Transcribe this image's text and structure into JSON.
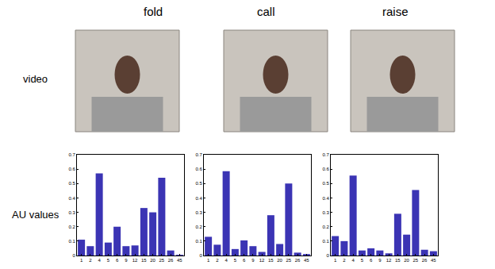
{
  "chart_data": [
    {
      "type": "bar",
      "title": "fold",
      "categories": [
        "1",
        "2",
        "4",
        "5",
        "6",
        "9",
        "12",
        "15",
        "20",
        "25",
        "26",
        "45"
      ],
      "values": [
        0.11,
        0.065,
        0.57,
        0.09,
        0.2,
        0.065,
        0.07,
        0.33,
        0.3,
        0.54,
        0.035,
        0.005
      ],
      "color": "#3b34b4",
      "ylim": [
        0,
        0.7
      ],
      "yticks": [
        0,
        0.1,
        0.2,
        0.3,
        0.4,
        0.5,
        0.6,
        0.7
      ],
      "grid": false
    },
    {
      "type": "bar",
      "title": "call",
      "categories": [
        "1",
        "2",
        "4",
        "5",
        "6",
        "9",
        "12",
        "15",
        "20",
        "25",
        "26",
        "45"
      ],
      "values": [
        0.13,
        0.075,
        0.585,
        0.045,
        0.105,
        0.065,
        0.025,
        0.28,
        0.08,
        0.5,
        0.02,
        0.01
      ],
      "color": "#3b34b4",
      "ylim": [
        0,
        0.7
      ],
      "yticks": [
        0,
        0.1,
        0.2,
        0.3,
        0.4,
        0.5,
        0.6,
        0.7
      ],
      "grid": false
    },
    {
      "type": "bar",
      "title": "raise",
      "categories": [
        "1",
        "2",
        "4",
        "5",
        "6",
        "9",
        "12",
        "15",
        "20",
        "25",
        "26",
        "45"
      ],
      "values": [
        0.135,
        0.1,
        0.555,
        0.035,
        0.05,
        0.035,
        0.015,
        0.29,
        0.145,
        0.455,
        0.04,
        0.03
      ],
      "color": "#3b34b4",
      "ylim": [
        0,
        0.7
      ],
      "yticks": [
        0,
        0.1,
        0.2,
        0.3,
        0.4,
        0.5,
        0.6,
        0.7
      ],
      "grid": false
    }
  ],
  "row_labels": [
    "video",
    "AU values"
  ]
}
